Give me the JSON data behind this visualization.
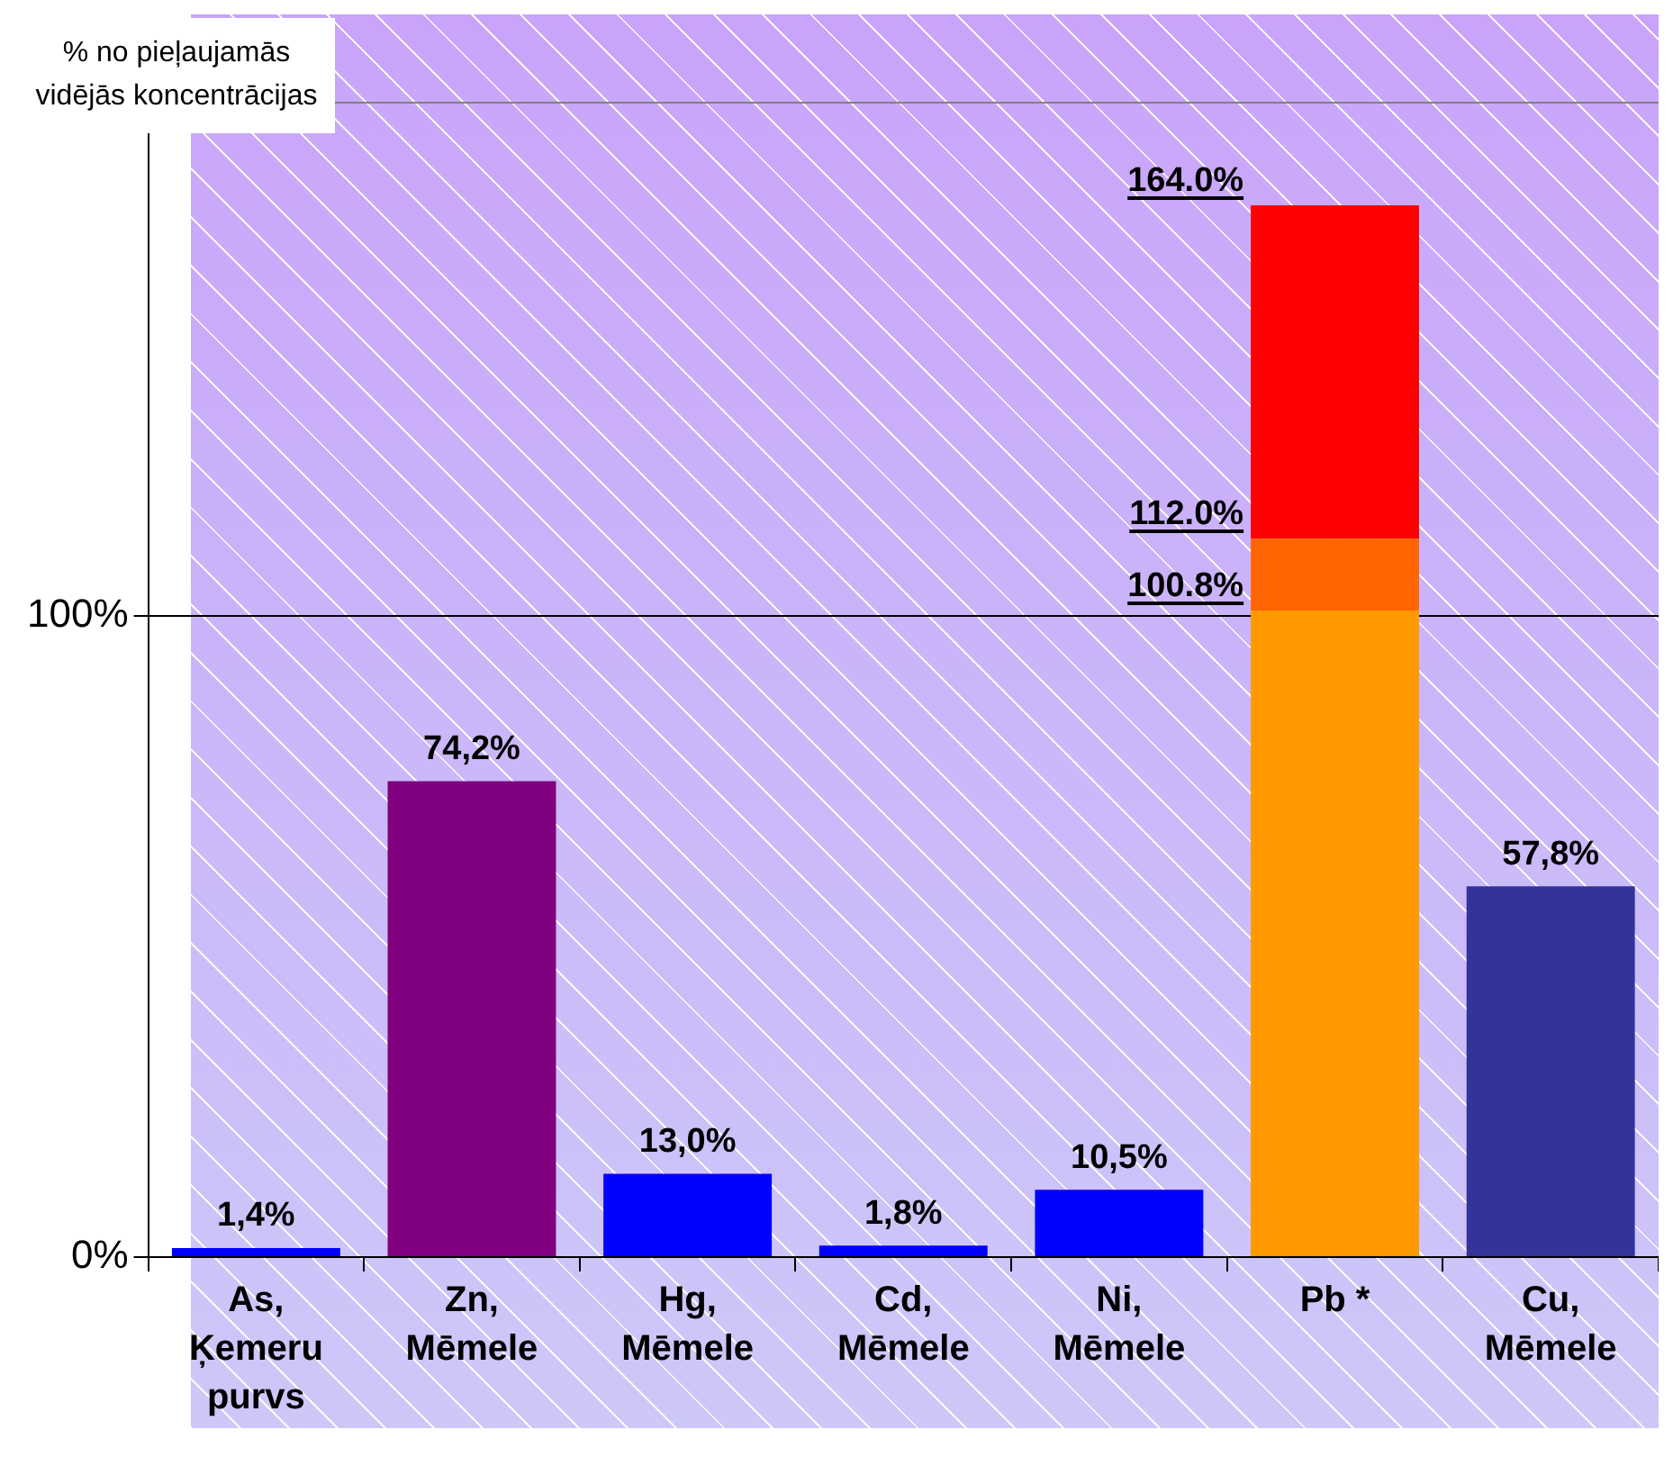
{
  "chart_data": {
    "type": "bar",
    "ylabel": "% no pieļaujamās vidējās koncentrācijas",
    "categories": [
      "As, Ķemeru purvs",
      "Zn, Mēmele",
      "Hg, Mēmele",
      "Cd, Mēmele",
      "Ni, Mēmele",
      "Pb *",
      "Cu, Mēmele"
    ],
    "stacked": true,
    "series": [
      {
        "colors": [
          "#0000ff",
          "#800080",
          "#0000ff",
          "#0000ff",
          "#0000ff",
          "#ff9900",
          "#333399"
        ],
        "values": [
          1.4,
          74.2,
          13.0,
          1.8,
          10.5,
          100.8,
          57.8
        ],
        "value_labels": [
          "1,4%",
          "74,2%",
          "13,0%",
          "1,8%",
          "10,5%",
          null,
          "57,8%"
        ]
      },
      {
        "color": "#ff6600",
        "values": [
          null,
          null,
          null,
          null,
          null,
          11.2,
          null
        ]
      },
      {
        "color": "#ff0000",
        "values": [
          null,
          null,
          null,
          null,
          null,
          52.0,
          null
        ]
      }
    ],
    "annotations": [
      {
        "text": "164.0%",
        "x": "Pb *",
        "y": 164.0
      },
      {
        "text": "112.0%",
        "x": "Pb *",
        "y": 112.0
      },
      {
        "text": "100.8%",
        "x": "Pb *",
        "y": 100.8
      }
    ],
    "ylim": [
      0,
      180
    ],
    "yticks": [
      {
        "value": 0,
        "label": "0%"
      },
      {
        "value": 100,
        "label": "100%"
      },
      {
        "value": 180,
        "label": null
      }
    ],
    "grid": "y",
    "legend": false
  }
}
